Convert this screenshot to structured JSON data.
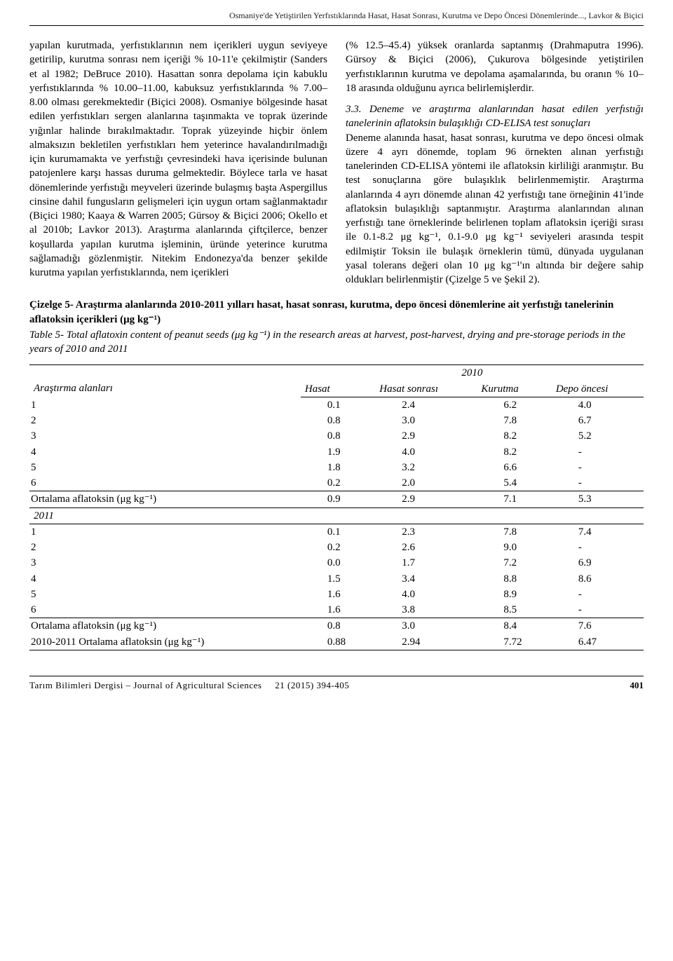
{
  "running_head": "Osmaniye'de Yetiştirilen Yerfıstıklarında Hasat, Hasat Sonrası, Kurutma ve Depo Öncesi Dönemlerinde..., Lavkor & Biçici",
  "left_para": "yapılan kurutmada, yerfıstıklarının nem içerikleri uygun seviyeye getirilip, kurutma sonrası nem içeriği % 10-11'e çekilmiştir (Sanders et al 1982; DeBruce 2010). Hasattan sonra depolama için kabuklu yerfıstıklarında % 10.00–11.00, kabuksuz yerfıstıklarında % 7.00–8.00 olması gerekmektedir (Biçici 2008). Osmaniye bölgesinde hasat edilen yerfıstıkları sergen alanlarına taşınmakta ve toprak üzerinde yığınlar halinde bırakılmaktadır. Toprak yüzeyinde hiçbir önlem almaksızın bekletilen yerfıstıkları hem yeterince havalandırılmadığı için kurumamakta ve yerfıstığı çevresindeki hava içerisinde bulunan patojenlere karşı hassas duruma gelmektedir. Böylece tarla ve hasat dönemlerinde yerfıstığı meyveleri üzerinde bulaşmış başta Aspergillus cinsine dahil fungusların gelişmeleri için uygun ortam sağlanmaktadır (Biçici 1980; Kaaya & Warren 2005; Gürsoy & Biçici 2006; Okello et al 2010b; Lavkor 2013). Araştırma alanlarında çiftçilerce, benzer koşullarda yapılan kurutma işleminin, üründe yeterince kurutma sağlamadığı gözlenmiştir. Nitekim Endonezya'da benzer şekilde kurutma yapılan yerfıstıklarında, nem içerikleri",
  "right_para": "(% 12.5–45.4) yüksek oranlarda saptanmış (Drahmaputra 1996). Gürsoy & Biçici (2006), Çukurova bölgesinde yetiştirilen yerfıstıklarının kurutma ve depolama aşamalarında, bu oranın % 10–18 arasında olduğunu ayrıca belirlemişlerdir.",
  "section_head": "3.3. Deneme ve araştırma alanlarından hasat edilen yerfıstığı tanelerinin aflatoksin bulaşıklığı CD-ELISA test sonuçları",
  "right_para2": "Deneme alanında hasat, hasat sonrası, kurutma ve depo öncesi olmak üzere 4 ayrı dönemde, toplam 96 örnekten alınan yerfıstığı tanelerinden CD-ELISA yöntemi ile aflatoksin kirliliği aranmıştır. Bu test sonuçlarına göre bulaşıklık belirlenmemiştir. Araştırma alanlarında 4 ayrı dönemde alınan 42 yerfıstığı tane örneğinin 41'inde aflatoksin bulaşıklığı saptanmıştır. Araştırma alanlarından alınan yerfıstığı tane örneklerinde belirlenen toplam aflatoksin içeriği sırası ile 0.1-8.2 μg kg⁻¹, 0.1-9.0 μg kg⁻¹ seviyeleri arasında tespit edilmiştir Toksin ile bulaşık örneklerin tümü, dünyada uygulanan yasal tolerans değeri olan 10 μg kg⁻¹'ın altında bir değere sahip oldukları belirlenmiştir (Çizelge 5 ve Şekil 2).",
  "caption_tr": "Çizelge 5- Araştırma alanlarında 2010-2011 yılları hasat, hasat sonrası, kurutma, depo öncesi dönemlerine ait yerfıstığı tanelerinin aflatoksin içerikleri (μg kg⁻¹)",
  "caption_en": "Table 5- Total aflatoxin content of peanut seeds (μg kg⁻¹) in the research areas at harvest, post-harvest, drying and pre-storage periods in the years of 2010 and 2011",
  "table": {
    "areas_label": "Araştırma alanları",
    "year_2010": "2010",
    "year_2011": "2011",
    "columns": [
      "Hasat",
      "Hasat sonrası",
      "Kurutma",
      "Depo öncesi"
    ],
    "rows_2010": [
      [
        "1",
        "0.1",
        "2.4",
        "6.2",
        "4.0"
      ],
      [
        "2",
        "0.8",
        "3.0",
        "7.8",
        "6.7"
      ],
      [
        "3",
        "0.8",
        "2.9",
        "8.2",
        "5.2"
      ],
      [
        "4",
        "1.9",
        "4.0",
        "8.2",
        "-"
      ],
      [
        "5",
        "1.8",
        "3.2",
        "6.6",
        "-"
      ],
      [
        "6",
        "0.2",
        "2.0",
        "5.4",
        "-"
      ]
    ],
    "avg_2010_label": "Ortalama aflatoksin (μg kg⁻¹)",
    "avg_2010": [
      "0.9",
      "2.9",
      "7.1",
      "5.3"
    ],
    "rows_2011": [
      [
        "1",
        "0.1",
        "2.3",
        "7.8",
        "7.4"
      ],
      [
        "2",
        "0.2",
        "2.6",
        "9.0",
        "-"
      ],
      [
        "3",
        "0.0",
        "1.7",
        "7.2",
        "6.9"
      ],
      [
        "4",
        "1.5",
        "3.4",
        "8.8",
        "8.6"
      ],
      [
        "5",
        "1.6",
        "4.0",
        "8.9",
        "-"
      ],
      [
        "6",
        "1.6",
        "3.8",
        "8.5",
        "-"
      ]
    ],
    "avg_2011_label": "Ortalama aflatoksin (μg kg⁻¹)",
    "avg_2011": [
      "0.8",
      "3.0",
      "8.4",
      "7.6"
    ],
    "avg_both_label": "2010-2011 Ortalama aflatoksin (μg kg⁻¹)",
    "avg_both": [
      "0.88",
      "2.94",
      "7.72",
      "6.47"
    ]
  },
  "footer": {
    "journal": "Tarım Bilimleri Dergisi – Journal of Agricultural Sciences",
    "issue": "21 (2015) 394-405",
    "page": "401"
  }
}
